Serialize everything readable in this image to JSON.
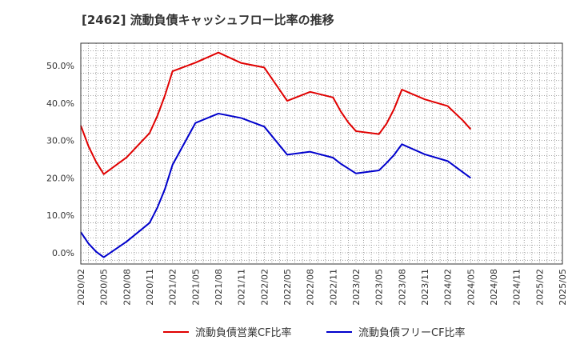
{
  "chart_data": {
    "type": "line",
    "title": "[2462]  流動負債キャッシュフロー比率の推移",
    "xlabel": "",
    "ylabel": "",
    "ylim": [
      -3,
      56
    ],
    "yticks": [
      0,
      10,
      20,
      30,
      40,
      50
    ],
    "ytick_labels": [
      "0.0%",
      "10.0%",
      "20.0%",
      "30.0%",
      "40.0%",
      "50.0%"
    ],
    "xlim": [
      0,
      63
    ],
    "xtick_positions": [
      0,
      3,
      6,
      9,
      12,
      15,
      18,
      21,
      24,
      27,
      30,
      33,
      36,
      39,
      42,
      45,
      48,
      51,
      54,
      57,
      60,
      63
    ],
    "categories": [
      "2020/02",
      "2020/05",
      "2020/08",
      "2020/11",
      "2021/02",
      "2021/05",
      "2021/08",
      "2021/11",
      "2022/02",
      "2022/05",
      "2022/08",
      "2022/11",
      "2023/02",
      "2023/05",
      "2023/08",
      "2023/11",
      "2024/02",
      "2024/05",
      "2024/08",
      "2024/11",
      "2025/02",
      "2025/05"
    ],
    "grid": true,
    "legend_position": "bottom",
    "series": [
      {
        "name": "流動負債営業CF比率",
        "color": "#e00000",
        "x": [
          0,
          1,
          2,
          3,
          6,
          9,
          10,
          11,
          12,
          15,
          18,
          21,
          24,
          27,
          30,
          33,
          34,
          35,
          36,
          39,
          40,
          41,
          42,
          45,
          48,
          50,
          51
        ],
        "values": [
          34.0,
          28.5,
          24.3,
          21.0,
          25.5,
          32.0,
          36.5,
          42.0,
          48.5,
          50.8,
          53.5,
          50.7,
          49.5,
          40.6,
          43.0,
          41.5,
          37.8,
          34.8,
          32.5,
          31.7,
          34.5,
          38.5,
          43.6,
          41.0,
          39.2,
          35.3,
          33.0
        ]
      },
      {
        "name": "流動負債フリーCF比率",
        "color": "#0000cc",
        "x": [
          0,
          1,
          2,
          3,
          6,
          9,
          10,
          11,
          12,
          15,
          18,
          21,
          24,
          27,
          30,
          33,
          34,
          35,
          36,
          39,
          40,
          41,
          42,
          45,
          48,
          50,
          51
        ],
        "values": [
          5.5,
          2.5,
          0.3,
          -1.2,
          3.0,
          8.0,
          12.0,
          17.0,
          23.5,
          34.7,
          37.2,
          36.0,
          33.7,
          26.2,
          27.0,
          25.4,
          23.8,
          22.5,
          21.2,
          22.0,
          24.0,
          26.2,
          29.0,
          26.3,
          24.5,
          21.5,
          20.0
        ]
      }
    ]
  }
}
